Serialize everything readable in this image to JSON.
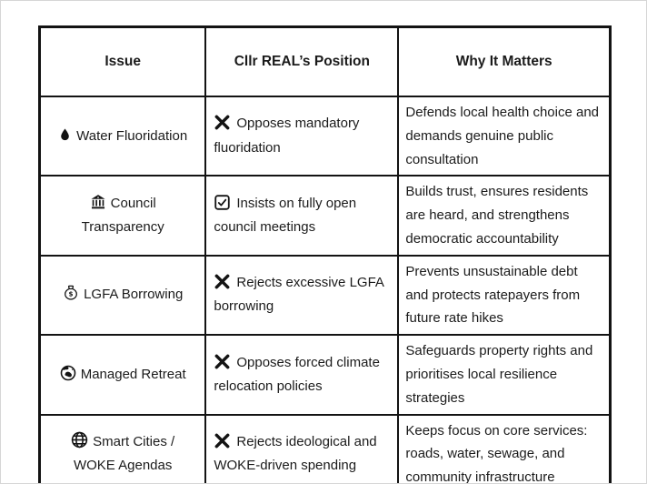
{
  "colors": {
    "text": "#1b1b1b",
    "border": "#131313",
    "background": "#ffffff",
    "canvas_outline": "#d6d6d6"
  },
  "table": {
    "headers": [
      {
        "label": "Issue"
      },
      {
        "label": "Cllr REAL’s Position"
      },
      {
        "label": "Why It Matters"
      }
    ],
    "rows": [
      {
        "issue_icon": "droplet-icon",
        "issue": "Water Fluoridation",
        "position_icon": "cross-mark-icon",
        "position": "Opposes mandatory fluoridation",
        "why": "Defends local health choice and demands genuine public consultation"
      },
      {
        "issue_icon": "bank-icon",
        "issue": "Council Transparency",
        "position_icon": "checkbox-check-icon",
        "position": "Insists on fully open council meetings",
        "why": "Builds trust, ensures residents are heard, and strengthens democratic accountability"
      },
      {
        "issue_icon": "money-bag-icon",
        "issue": "LGFA Borrowing",
        "position_icon": "cross-mark-icon",
        "position": "Rejects excessive LGFA borrowing",
        "why": "Prevents unsustainable debt and protects ratepayers from future rate hikes"
      },
      {
        "issue_icon": "earth-globe-icon",
        "issue": "Managed Retreat",
        "position_icon": "cross-mark-icon",
        "position": "Opposes forced climate relocation policies",
        "why": "Safeguards property rights and prioritises local resilience strategies"
      },
      {
        "issue_icon": "globe-meridians-icon",
        "issue": "Smart Cities / WOKE Agendas",
        "position_icon": "cross-mark-icon",
        "position": "Rejects ideological and WOKE-driven spending",
        "why": "Keeps focus on core services: roads, water, sewage, and community infrastructure"
      }
    ]
  }
}
